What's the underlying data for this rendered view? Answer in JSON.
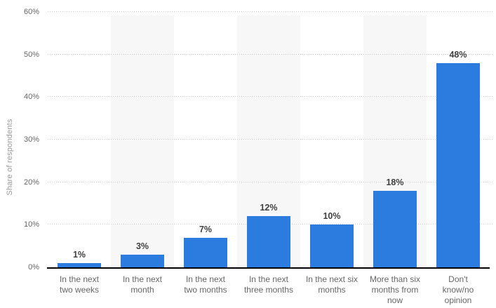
{
  "chart_data": {
    "type": "bar",
    "title": "",
    "xlabel": "",
    "ylabel": "Share of respondents",
    "categories": [
      "In the next\ntwo weeks",
      "In the next\nmonth",
      "In the next\ntwo months",
      "In the next\nthree months",
      "In the next six\nmonths",
      "More than six\nmonths from\nnow",
      "Don't\nknow/no\nopinion"
    ],
    "values": [
      1,
      3,
      7,
      12,
      10,
      18,
      48
    ],
    "value_labels": [
      "1%",
      "3%",
      "7%",
      "12%",
      "10%",
      "18%",
      "48%"
    ],
    "ylim": [
      0,
      60
    ],
    "yticks": [
      0,
      10,
      20,
      30,
      40,
      50,
      60
    ],
    "ytick_labels": [
      "0%",
      "10%",
      "20%",
      "30%",
      "40%",
      "50%",
      "60%"
    ],
    "grid": "horizontal-dotted",
    "legend": "none",
    "banded_columns": [
      1,
      3,
      5
    ],
    "colors": {
      "bar": "#2c7bdf",
      "plot_band": "#f7f7f7",
      "gridline": "#cccccc",
      "axis_line": "#000000",
      "tick_label": "#666666",
      "category_label": "#666666",
      "value_label": "#404040",
      "axis_title": "#999999",
      "background": "#ffffff"
    }
  }
}
